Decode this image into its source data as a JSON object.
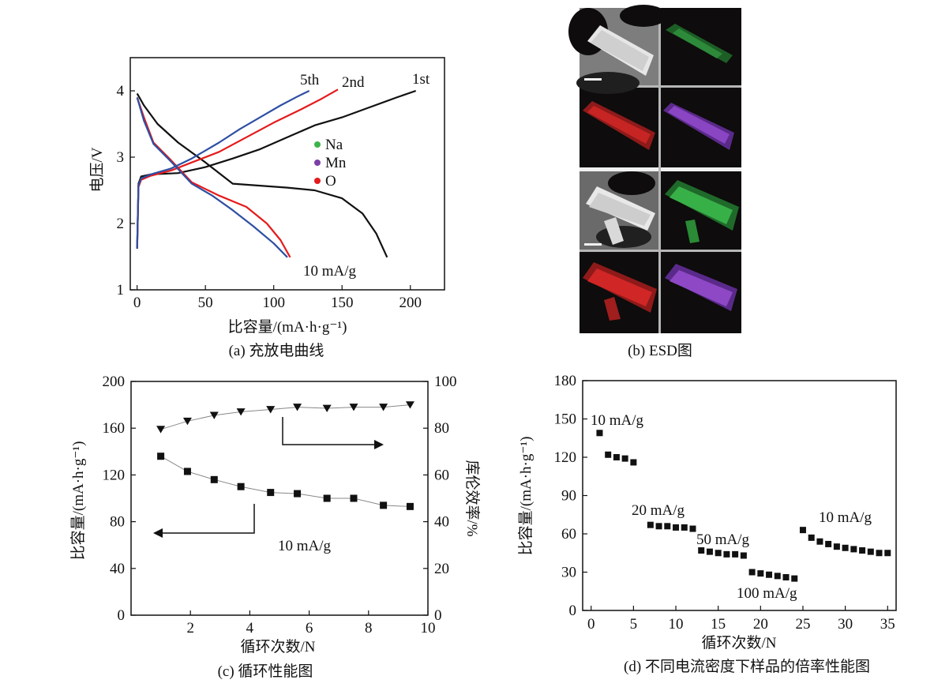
{
  "colors": {
    "black": "#111111",
    "red": "#e41a1c",
    "blue": "#2e4fa3",
    "green": "#3cb44b",
    "purple": "#7b3fa6"
  },
  "chart_data": [
    {
      "id": "a",
      "type": "line",
      "caption": "(a) 充放电曲线",
      "xlabel": "比容量/(mA·h·g⁻¹)",
      "ylabel": "电压/V",
      "xlim": [
        -5,
        225
      ],
      "ylim": [
        1,
        4.5
      ],
      "xticks": [
        0,
        50,
        100,
        150,
        200
      ],
      "yticks": [
        1,
        2,
        3,
        4
      ],
      "annotation": "10 mA/g",
      "legend": [
        {
          "label": "Na",
          "color": "#3cb44b"
        },
        {
          "label": "Mn",
          "color": "#7b3fa6"
        },
        {
          "label": "O",
          "color": "#e41a1c"
        }
      ],
      "series": [
        {
          "name": "1st",
          "color": "#111111",
          "charge": [
            [
              0,
              1.62
            ],
            [
              1,
              2.6
            ],
            [
              3,
              2.71
            ],
            [
              10,
              2.74
            ],
            [
              30,
              2.76
            ],
            [
              50,
              2.85
            ],
            [
              70,
              2.98
            ],
            [
              90,
              3.12
            ],
            [
              110,
              3.3
            ],
            [
              130,
              3.48
            ],
            [
              150,
              3.6
            ],
            [
              170,
              3.75
            ],
            [
              190,
              3.9
            ],
            [
              204,
              4.0
            ]
          ],
          "discharge": [
            [
              0,
              3.96
            ],
            [
              5,
              3.78
            ],
            [
              15,
              3.5
            ],
            [
              30,
              3.22
            ],
            [
              50,
              2.92
            ],
            [
              70,
              2.6
            ],
            [
              90,
              2.57
            ],
            [
              110,
              2.54
            ],
            [
              130,
              2.5
            ],
            [
              150,
              2.38
            ],
            [
              165,
              2.15
            ],
            [
              175,
              1.85
            ],
            [
              183,
              1.49
            ]
          ]
        },
        {
          "name": "2nd",
          "color": "#e41a1c",
          "charge": [
            [
              0,
              1.62
            ],
            [
              1,
              2.55
            ],
            [
              3,
              2.66
            ],
            [
              10,
              2.72
            ],
            [
              25,
              2.8
            ],
            [
              40,
              2.92
            ],
            [
              60,
              3.08
            ],
            [
              80,
              3.3
            ],
            [
              100,
              3.52
            ],
            [
              120,
              3.72
            ],
            [
              135,
              3.88
            ],
            [
              147,
              4.02
            ]
          ],
          "discharge": [
            [
              0,
              3.9
            ],
            [
              5,
              3.6
            ],
            [
              12,
              3.22
            ],
            [
              25,
              2.95
            ],
            [
              40,
              2.62
            ],
            [
              60,
              2.42
            ],
            [
              80,
              2.25
            ],
            [
              95,
              2.0
            ],
            [
              105,
              1.75
            ],
            [
              112,
              1.49
            ]
          ]
        },
        {
          "name": "5th",
          "color": "#2e4fa3",
          "charge": [
            [
              0,
              1.62
            ],
            [
              1,
              2.58
            ],
            [
              3,
              2.68
            ],
            [
              10,
              2.74
            ],
            [
              25,
              2.83
            ],
            [
              40,
              2.98
            ],
            [
              60,
              3.22
            ],
            [
              75,
              3.42
            ],
            [
              90,
              3.6
            ],
            [
              105,
              3.78
            ],
            [
              118,
              3.92
            ],
            [
              126,
              4.0
            ]
          ],
          "discharge": [
            [
              0,
              3.9
            ],
            [
              5,
              3.55
            ],
            [
              12,
              3.2
            ],
            [
              25,
              2.93
            ],
            [
              40,
              2.6
            ],
            [
              55,
              2.42
            ],
            [
              70,
              2.2
            ],
            [
              85,
              1.96
            ],
            [
              100,
              1.7
            ],
            [
              110,
              1.49
            ]
          ]
        }
      ]
    },
    {
      "id": "b",
      "type": "image-grid",
      "caption": "(b) ESD图"
    },
    {
      "id": "c",
      "type": "scatter",
      "caption": "(c) 循环性能图",
      "xlabel": "循环次数/N",
      "ylabel_left": "比容量/(mA·h·g⁻¹)",
      "ylabel_right": "库伦效率/%",
      "xlim": [
        0,
        10
      ],
      "ylim_left": [
        0,
        200
      ],
      "ylim_right": [
        0,
        100
      ],
      "xticks": [
        2,
        4,
        6,
        8,
        10
      ],
      "yticks_left": [
        0,
        40,
        80,
        120,
        160,
        200
      ],
      "yticks_right": [
        0,
        20,
        40,
        60,
        80,
        100
      ],
      "annotation": "10 mA/g",
      "series": [
        {
          "axis": "left",
          "marker": "square",
          "x": [
            1,
            1.9,
            2.8,
            3.7,
            4.7,
            5.6,
            6.6,
            7.5,
            8.5,
            9.4
          ],
          "values": [
            136,
            123,
            116,
            110,
            105,
            104,
            100,
            100,
            94,
            93
          ]
        },
        {
          "axis": "right",
          "marker": "triangle-down",
          "x": [
            1,
            1.9,
            2.8,
            3.7,
            4.7,
            5.6,
            6.6,
            7.5,
            8.5,
            9.4
          ],
          "values": [
            79.5,
            83,
            85.5,
            87,
            88,
            89,
            88.5,
            89,
            89,
            90
          ]
        }
      ]
    },
    {
      "id": "d",
      "type": "scatter",
      "caption": "(d) 不同电流密度下样品的倍率性能图",
      "xlabel": "循环次数/N",
      "ylabel": "比容量/(mA·h·g⁻¹)",
      "xlim": [
        -1,
        36
      ],
      "ylim": [
        0,
        180
      ],
      "xticks": [
        0,
        5,
        10,
        15,
        20,
        25,
        30,
        35
      ],
      "yticks": [
        0,
        30,
        60,
        90,
        120,
        150,
        180
      ],
      "labels": [
        "10 mA/g",
        "20 mA/g",
        "50 mA/g",
        "100 mA/g",
        "10 mA/g"
      ],
      "series": [
        {
          "marker": "square",
          "x": [
            1,
            2,
            3,
            4,
            5,
            7,
            8,
            9,
            10,
            11,
            12,
            13,
            14,
            15,
            16,
            17,
            18,
            19,
            20,
            21,
            22,
            23,
            24,
            25,
            26,
            27,
            28,
            29,
            30,
            31,
            32,
            33,
            34,
            35
          ],
          "values": [
            139,
            122,
            120,
            119,
            116,
            67,
            66,
            66,
            65,
            65,
            64,
            47,
            46,
            45,
            44,
            44,
            43,
            30,
            29,
            28,
            27,
            26,
            25,
            63,
            57,
            54,
            52,
            50,
            49,
            48,
            47,
            46,
            45,
            45
          ]
        }
      ]
    }
  ]
}
